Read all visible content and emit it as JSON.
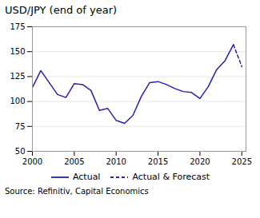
{
  "chart_data": {
    "type": "line",
    "title": "USD/JPY (end of year)",
    "caption": "Source: Refinitiv, Capital Economics",
    "series": [
      {
        "name": "Actual",
        "color": "#2222aa",
        "line_style": "solid",
        "x": [
          2000,
          2001,
          2002,
          2003,
          2004,
          2005,
          2006,
          2007,
          2008,
          2009,
          2010,
          2011,
          2012,
          2013,
          2014,
          2015,
          2016,
          2017,
          2018,
          2019,
          2020,
          2021,
          2022,
          2023,
          2024
        ],
        "values": [
          114,
          131,
          119,
          107,
          104,
          118,
          117,
          111,
          91,
          93,
          81,
          78,
          86,
          105,
          119,
          120,
          117,
          113,
          110,
          109,
          103,
          115,
          132,
          141,
          157
        ]
      },
      {
        "name": "Actual & Forecast",
        "color": "#2222aa",
        "line_style": "dashed",
        "x": [
          2024,
          2025
        ],
        "values": [
          157,
          135
        ]
      }
    ],
    "xlim": [
      2000,
      2025.5
    ],
    "xticks": [
      2000,
      2005,
      2010,
      2015,
      2020,
      2025
    ],
    "ylim": [
      50,
      175
    ],
    "yticks": [
      50,
      75,
      100,
      125,
      150,
      175
    ],
    "grid": true,
    "legend": "bottom"
  }
}
